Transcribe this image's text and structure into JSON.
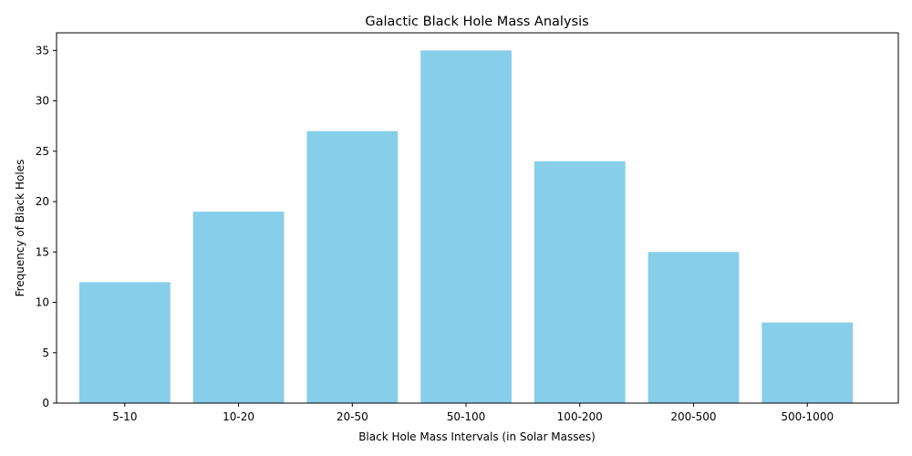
{
  "chart_data": {
    "type": "bar",
    "title": "Galactic Black Hole Mass Analysis",
    "xlabel": "Black Hole Mass Intervals (in Solar Masses)",
    "ylabel": "Frequency of Black Holes",
    "categories": [
      "5-10",
      "10-20",
      "20-50",
      "50-100",
      "100-200",
      "200-500",
      "500-1000"
    ],
    "values": [
      12,
      19,
      27,
      35,
      24,
      15,
      8
    ],
    "ylim": [
      0,
      36.75
    ],
    "yticks": [
      0,
      5,
      10,
      15,
      20,
      25,
      30,
      35
    ],
    "bar_color": "#87ceeb",
    "grid": false,
    "legend": "none"
  }
}
